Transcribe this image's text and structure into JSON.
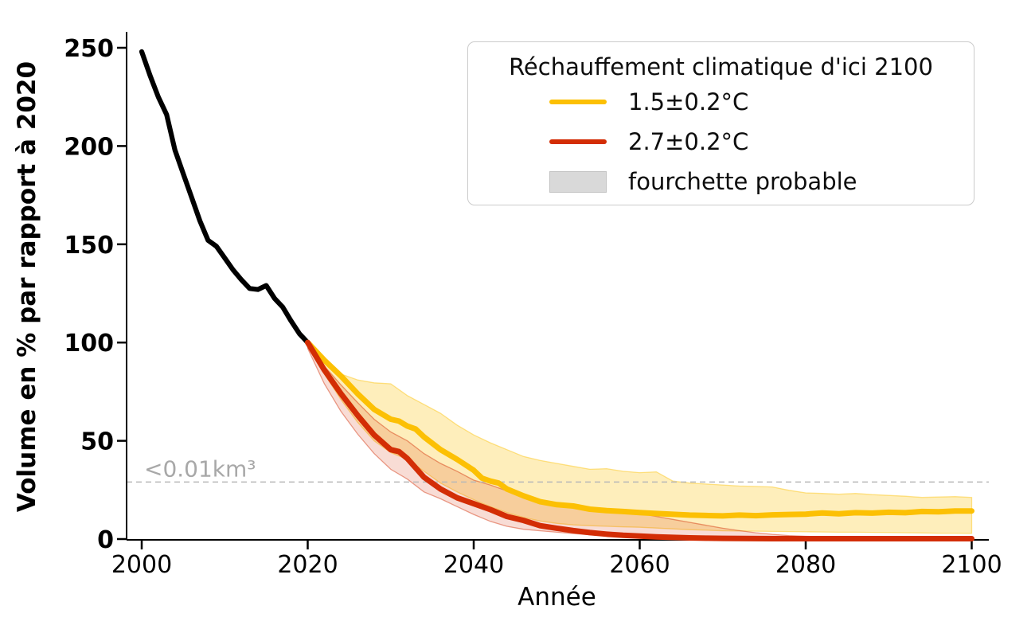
{
  "figure": {
    "background": "#ffffff"
  },
  "legend": {
    "title": "Réchauffement climatique d'ici 2100",
    "entries": [
      {
        "label": "1.5±0.2°C",
        "swatch": "line",
        "color": "#FCC004"
      },
      {
        "label": "2.7±0.2°C",
        "swatch": "line",
        "color": "#D32D05"
      },
      {
        "label": "fourchette probable",
        "swatch": "patch",
        "color": "#D9D9D9"
      }
    ]
  },
  "chart_data": {
    "type": "line",
    "title": "",
    "xlabel": "Année",
    "ylabel": "Volume en % par rapport à 2020",
    "x_ticks": [
      2000,
      2020,
      2040,
      2060,
      2080,
      2100
    ],
    "y_ticks": [
      0,
      50,
      100,
      150,
      200,
      250
    ],
    "xlim": [
      1998.3,
      2102.1
    ],
    "ylim": [
      0,
      256
    ],
    "grid": false,
    "legend_position": "upper right",
    "threshold": {
      "value": 29,
      "label": "<0.01km³",
      "label_color": "#a8a8a8",
      "line_color": "#b8b8b8"
    },
    "series": [
      {
        "name": "observed",
        "color": "#000000",
        "points": [
          [
            2000,
            248
          ],
          [
            2001,
            236
          ],
          [
            2002,
            225
          ],
          [
            2003,
            216
          ],
          [
            2004,
            198
          ],
          [
            2005,
            186
          ],
          [
            2006,
            174
          ],
          [
            2007,
            162
          ],
          [
            2008,
            152
          ],
          [
            2009,
            149
          ],
          [
            2010,
            143
          ],
          [
            2011,
            137
          ],
          [
            2012,
            132
          ],
          [
            2013,
            127.5
          ],
          [
            2014,
            127
          ],
          [
            2015,
            129
          ],
          [
            2016,
            122.5
          ],
          [
            2017,
            118
          ],
          [
            2018,
            111
          ],
          [
            2019,
            104.5
          ],
          [
            2020,
            100
          ]
        ]
      },
      {
        "name": "1.5±0.2°C",
        "color": "#FCC004",
        "band_color": "#FCC004",
        "band_alpha": 0.27,
        "points": [
          [
            2020,
            100
          ],
          [
            2022,
            91
          ],
          [
            2024,
            83
          ],
          [
            2026,
            74
          ],
          [
            2028,
            66
          ],
          [
            2030,
            61
          ],
          [
            2031,
            60
          ],
          [
            2032,
            57.5
          ],
          [
            2033,
            56
          ],
          [
            2034,
            52
          ],
          [
            2036,
            45.5
          ],
          [
            2038,
            40.5
          ],
          [
            2040,
            35
          ],
          [
            2041,
            31
          ],
          [
            2042,
            29.5
          ],
          [
            2043,
            28.5
          ],
          [
            2044,
            25.5
          ],
          [
            2046,
            22
          ],
          [
            2048,
            19
          ],
          [
            2050,
            17.5
          ],
          [
            2052,
            16.8
          ],
          [
            2054,
            15.2
          ],
          [
            2056,
            14.5
          ],
          [
            2058,
            14
          ],
          [
            2060,
            13.5
          ],
          [
            2062,
            13
          ],
          [
            2064,
            12.6
          ],
          [
            2066,
            12.2
          ],
          [
            2068,
            12
          ],
          [
            2070,
            11.8
          ],
          [
            2072,
            12.2
          ],
          [
            2074,
            11.9
          ],
          [
            2076,
            12.3
          ],
          [
            2078,
            12.5
          ],
          [
            2080,
            12.7
          ],
          [
            2082,
            13.3
          ],
          [
            2084,
            12.9
          ],
          [
            2086,
            13.4
          ],
          [
            2088,
            13.2
          ],
          [
            2090,
            13.6
          ],
          [
            2092,
            13.4
          ],
          [
            2094,
            14
          ],
          [
            2096,
            13.9
          ],
          [
            2098,
            14.3
          ],
          [
            2100,
            14.3
          ]
        ],
        "band_upper": [
          [
            2020,
            100
          ],
          [
            2022,
            90
          ],
          [
            2024,
            84
          ],
          [
            2026,
            81
          ],
          [
            2028,
            79.5
          ],
          [
            2030,
            79
          ],
          [
            2032,
            73
          ],
          [
            2034,
            68.5
          ],
          [
            2036,
            64
          ],
          [
            2038,
            58
          ],
          [
            2040,
            53
          ],
          [
            2042,
            49
          ],
          [
            2044,
            45.5
          ],
          [
            2046,
            42
          ],
          [
            2048,
            40
          ],
          [
            2050,
            38.5
          ],
          [
            2052,
            37
          ],
          [
            2054,
            35.5
          ],
          [
            2056,
            35.8
          ],
          [
            2058,
            34.5
          ],
          [
            2060,
            33.8
          ],
          [
            2062,
            34.2
          ],
          [
            2064,
            29.5
          ],
          [
            2066,
            28.5
          ],
          [
            2068,
            28
          ],
          [
            2070,
            27.5
          ],
          [
            2072,
            27
          ],
          [
            2074,
            26.8
          ],
          [
            2076,
            26.5
          ],
          [
            2078,
            24.8
          ],
          [
            2080,
            23.5
          ],
          [
            2082,
            23.2
          ],
          [
            2084,
            22.8
          ],
          [
            2086,
            23.2
          ],
          [
            2088,
            22.6
          ],
          [
            2090,
            22.2
          ],
          [
            2092,
            21.8
          ],
          [
            2094,
            21.2
          ],
          [
            2096,
            21.4
          ],
          [
            2098,
            21.6
          ],
          [
            2100,
            21.2
          ]
        ],
        "band_lower": [
          [
            2020,
            98
          ],
          [
            2022,
            84
          ],
          [
            2024,
            71
          ],
          [
            2026,
            59.5
          ],
          [
            2028,
            50
          ],
          [
            2030,
            44
          ],
          [
            2032,
            40.5
          ],
          [
            2034,
            34.5
          ],
          [
            2036,
            28.5
          ],
          [
            2038,
            24
          ],
          [
            2040,
            20
          ],
          [
            2042,
            16.5
          ],
          [
            2044,
            13.5
          ],
          [
            2046,
            11
          ],
          [
            2048,
            9.2
          ],
          [
            2050,
            8
          ],
          [
            2052,
            7.2
          ],
          [
            2054,
            6.8
          ],
          [
            2056,
            6.5
          ],
          [
            2058,
            6.2
          ],
          [
            2060,
            6
          ],
          [
            2062,
            5.6
          ],
          [
            2064,
            5.2
          ],
          [
            2066,
            4.8
          ],
          [
            2068,
            4.5
          ],
          [
            2070,
            4.2
          ],
          [
            2072,
            4.1
          ],
          [
            2074,
            4
          ],
          [
            2076,
            3.9
          ],
          [
            2078,
            3.8
          ],
          [
            2080,
            3.7
          ],
          [
            2082,
            3.6
          ],
          [
            2084,
            3.5
          ],
          [
            2086,
            3.5
          ],
          [
            2088,
            3.4
          ],
          [
            2090,
            3.3
          ],
          [
            2092,
            3.2
          ],
          [
            2094,
            3.1
          ],
          [
            2096,
            3
          ],
          [
            2098,
            3
          ],
          [
            2100,
            2.9
          ]
        ]
      },
      {
        "name": "2.7±0.2°C",
        "color": "#D32D05",
        "band_color": "#D32D05",
        "band_alpha": 0.17,
        "points": [
          [
            2020,
            100
          ],
          [
            2022,
            86
          ],
          [
            2024,
            74
          ],
          [
            2026,
            63
          ],
          [
            2028,
            53
          ],
          [
            2030,
            45.5
          ],
          [
            2031,
            44.5
          ],
          [
            2032,
            41
          ],
          [
            2034,
            31.5
          ],
          [
            2036,
            25.5
          ],
          [
            2038,
            21
          ],
          [
            2040,
            18
          ],
          [
            2042,
            15
          ],
          [
            2044,
            11.5
          ],
          [
            2046,
            9.5
          ],
          [
            2048,
            6.8
          ],
          [
            2050,
            5.5
          ],
          [
            2052,
            4.3
          ],
          [
            2054,
            3.3
          ],
          [
            2056,
            2.5
          ],
          [
            2058,
            1.9
          ],
          [
            2060,
            1.5
          ],
          [
            2062,
            1.1
          ],
          [
            2064,
            0.85
          ],
          [
            2066,
            0.6
          ],
          [
            2068,
            0.45
          ],
          [
            2070,
            0.35
          ],
          [
            2072,
            0.3
          ],
          [
            2074,
            0.25
          ],
          [
            2076,
            0.22
          ],
          [
            2080,
            0.2
          ],
          [
            2090,
            0.2
          ],
          [
            2100,
            0.2
          ]
        ],
        "band_upper": [
          [
            2020,
            100
          ],
          [
            2022,
            88
          ],
          [
            2024,
            78.5
          ],
          [
            2026,
            69.5
          ],
          [
            2028,
            61
          ],
          [
            2030,
            54.5
          ],
          [
            2032,
            50
          ],
          [
            2034,
            43.5
          ],
          [
            2036,
            38.5
          ],
          [
            2038,
            34.5
          ],
          [
            2040,
            30
          ],
          [
            2042,
            27.5
          ],
          [
            2044,
            24.5
          ],
          [
            2046,
            21.5
          ],
          [
            2048,
            19.5
          ],
          [
            2050,
            18
          ],
          [
            2052,
            16.5
          ],
          [
            2054,
            15
          ],
          [
            2056,
            14.3
          ],
          [
            2058,
            13.6
          ],
          [
            2060,
            13
          ],
          [
            2062,
            11.5
          ],
          [
            2064,
            10
          ],
          [
            2066,
            8.5
          ],
          [
            2068,
            7
          ],
          [
            2070,
            5.5
          ],
          [
            2072,
            4.3
          ],
          [
            2074,
            3.2
          ],
          [
            2076,
            2.4
          ],
          [
            2078,
            1.8
          ],
          [
            2080,
            1.4
          ],
          [
            2084,
            0.9
          ],
          [
            2088,
            0.7
          ],
          [
            2092,
            0.55
          ],
          [
            2096,
            0.45
          ],
          [
            2100,
            0.4
          ]
        ],
        "band_lower": [
          [
            2020,
            97
          ],
          [
            2022,
            79
          ],
          [
            2024,
            65
          ],
          [
            2026,
            53.5
          ],
          [
            2028,
            43.5
          ],
          [
            2030,
            35.5
          ],
          [
            2032,
            30.5
          ],
          [
            2034,
            24
          ],
          [
            2036,
            20.5
          ],
          [
            2038,
            16.5
          ],
          [
            2040,
            12.5
          ],
          [
            2042,
            9
          ],
          [
            2044,
            6.5
          ],
          [
            2046,
            5
          ],
          [
            2048,
            4.2
          ],
          [
            2050,
            3.5
          ],
          [
            2052,
            2.8
          ],
          [
            2054,
            2.2
          ],
          [
            2056,
            1.7
          ],
          [
            2058,
            1.3
          ],
          [
            2060,
            1
          ],
          [
            2062,
            0.7
          ],
          [
            2064,
            0.5
          ],
          [
            2066,
            0.35
          ],
          [
            2068,
            0.25
          ],
          [
            2070,
            0.15
          ],
          [
            2072,
            0.1
          ],
          [
            2074,
            0.05
          ],
          [
            2076,
            0
          ],
          [
            2080,
            0
          ],
          [
            2090,
            0
          ],
          [
            2100,
            0
          ]
        ]
      }
    ]
  }
}
